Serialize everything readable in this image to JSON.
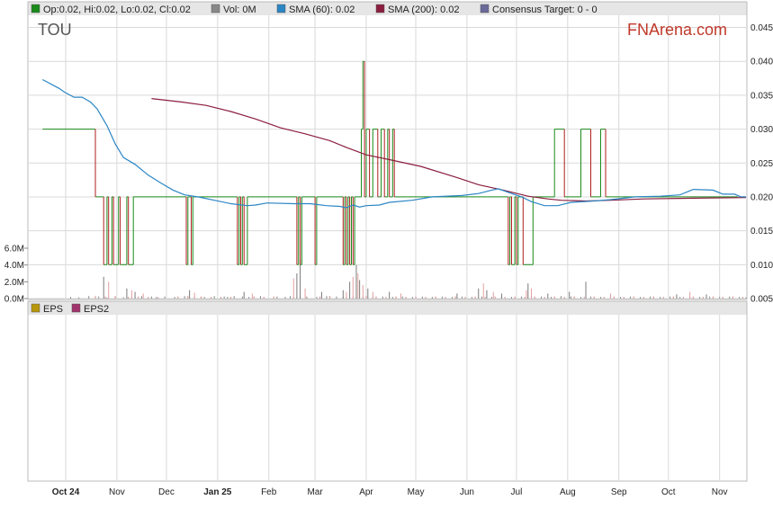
{
  "legend_top": {
    "ohlc": "Op:0.02, Hi:0.02, Lo:0.02, Cl:0.02",
    "vol": "Vol: 0M",
    "sma60": "SMA (60): 0.02",
    "sma200": "SMA (200): 0.02",
    "consensus": "Consensus Target: 0 - 0"
  },
  "legend_bottom": {
    "eps": "EPS",
    "eps2": "EPS2"
  },
  "ticker": "TOU",
  "brand": "FNArena.com",
  "colors": {
    "candle_up": "#1a8a1a",
    "candle_down": "#b01e1e",
    "sma60": "#2b86c5",
    "sma200": "#8b1e3f",
    "grid": "#d9d9d9",
    "legend_bg": "#e6e6e6",
    "brand": "#c0392b",
    "eps": "#b8960c",
    "eps2": "#a0336b"
  },
  "chart_data": {
    "type": "line",
    "price_axis": {
      "ticks": [
        "0.045",
        "0.040",
        "0.035",
        "0.030",
        "0.025",
        "0.020",
        "0.015",
        "0.010",
        "0.005"
      ],
      "ylim": [
        0.005,
        0.045
      ]
    },
    "volume_axis": {
      "ticks": [
        "6.0M",
        "4.0M",
        "2.0M",
        "0.0M"
      ],
      "ylim": [
        0,
        6
      ]
    },
    "months": [
      {
        "label": "Oct 24",
        "bold": true,
        "day": 0
      },
      {
        "label": "Nov",
        "bold": false,
        "day": 31
      },
      {
        "label": "Dec",
        "bold": false,
        "day": 61
      },
      {
        "label": "Jan 25",
        "bold": true,
        "day": 92
      },
      {
        "label": "Feb",
        "bold": false,
        "day": 123
      },
      {
        "label": "Mar",
        "bold": false,
        "day": 151
      },
      {
        "label": "Apr",
        "bold": false,
        "day": 182
      },
      {
        "label": "May",
        "bold": false,
        "day": 212
      },
      {
        "label": "Jun",
        "bold": false,
        "day": 243
      },
      {
        "label": "Jul",
        "bold": false,
        "day": 273
      },
      {
        "label": "Aug",
        "bold": false,
        "day": 304
      },
      {
        "label": "Sep",
        "bold": false,
        "day": 335
      },
      {
        "label": "Oct",
        "bold": false,
        "day": 365
      },
      {
        "label": "Nov",
        "bold": false,
        "day": 396
      }
    ],
    "price_steps": [
      [
        -14,
        0.03
      ],
      [
        17,
        0.03
      ],
      [
        18,
        0.02
      ],
      [
        23,
        0.01
      ],
      [
        25,
        0.02
      ],
      [
        26,
        0.01
      ],
      [
        28,
        0.02
      ],
      [
        29,
        0.01
      ],
      [
        32,
        0.02
      ],
      [
        33,
        0.01
      ],
      [
        34,
        0.01
      ],
      [
        37,
        0.02
      ],
      [
        38,
        0.01
      ],
      [
        40,
        0.01
      ],
      [
        41,
        0.02
      ],
      [
        72,
        0.02
      ],
      [
        73,
        0.01
      ],
      [
        74,
        0.02
      ],
      [
        76,
        0.01
      ],
      [
        77,
        0.02
      ],
      [
        103,
        0.02
      ],
      [
        104,
        0.01
      ],
      [
        105,
        0.02
      ],
      [
        106,
        0.01
      ],
      [
        107,
        0.02
      ],
      [
        108,
        0.01
      ],
      [
        110,
        0.02
      ],
      [
        139,
        0.02
      ],
      [
        140,
        0.01
      ],
      [
        141,
        0.02
      ],
      [
        142,
        0.01
      ],
      [
        143,
        0.02
      ],
      [
        150,
        0.02
      ],
      [
        151,
        0.01
      ],
      [
        152,
        0.02
      ],
      [
        167,
        0.02
      ],
      [
        168,
        0.01
      ],
      [
        169,
        0.02
      ],
      [
        170,
        0.01
      ],
      [
        171,
        0.02
      ],
      [
        172,
        0.01
      ],
      [
        173,
        0.02
      ],
      [
        174,
        0.01
      ],
      [
        175,
        0.02
      ],
      [
        178,
        0.02
      ],
      [
        179,
        0.03
      ],
      [
        180,
        0.04
      ],
      [
        181,
        0.02
      ],
      [
        182,
        0.03
      ],
      [
        184,
        0.02
      ],
      [
        186,
        0.03
      ],
      [
        189,
        0.02
      ],
      [
        191,
        0.03
      ],
      [
        193,
        0.02
      ],
      [
        195,
        0.03
      ],
      [
        196,
        0.02
      ],
      [
        198,
        0.03
      ],
      [
        199,
        0.02
      ],
      [
        267,
        0.02
      ],
      [
        268,
        0.01
      ],
      [
        269,
        0.02
      ],
      [
        270,
        0.01
      ],
      [
        272,
        0.02
      ],
      [
        273,
        0.01
      ],
      [
        274,
        0.02
      ],
      [
        277,
        0.01
      ],
      [
        282,
        0.01
      ],
      [
        283,
        0.02
      ],
      [
        295,
        0.02
      ],
      [
        296,
        0.03
      ],
      [
        301,
        0.03
      ],
      [
        302,
        0.02
      ],
      [
        311,
        0.02
      ],
      [
        312,
        0.03
      ],
      [
        317,
        0.03
      ],
      [
        318,
        0.02
      ],
      [
        323,
        0.02
      ],
      [
        324,
        0.03
      ],
      [
        326,
        0.03
      ],
      [
        327,
        0.02
      ],
      [
        407,
        0.02
      ]
    ],
    "sma60": [
      [
        -14,
        0.0373
      ],
      [
        -4,
        0.036
      ],
      [
        -1,
        0.0355
      ],
      [
        5,
        0.0347
      ],
      [
        10,
        0.0347
      ],
      [
        15,
        0.034
      ],
      [
        19,
        0.033
      ],
      [
        25,
        0.0305
      ],
      [
        30,
        0.0278
      ],
      [
        35,
        0.0258
      ],
      [
        42,
        0.0248
      ],
      [
        50,
        0.0232
      ],
      [
        58,
        0.022
      ],
      [
        65,
        0.021
      ],
      [
        72,
        0.0203
      ],
      [
        80,
        0.02
      ],
      [
        90,
        0.0195
      ],
      [
        100,
        0.019
      ],
      [
        110,
        0.0187
      ],
      [
        115,
        0.0188
      ],
      [
        122,
        0.0191
      ],
      [
        138,
        0.019
      ],
      [
        148,
        0.019
      ],
      [
        158,
        0.0187
      ],
      [
        166,
        0.0186
      ],
      [
        170,
        0.0184
      ],
      [
        174,
        0.0188
      ],
      [
        178,
        0.0185
      ],
      [
        182,
        0.0187
      ],
      [
        190,
        0.0188
      ],
      [
        196,
        0.0192
      ],
      [
        210,
        0.0195
      ],
      [
        222,
        0.02
      ],
      [
        240,
        0.0202
      ],
      [
        250,
        0.0205
      ],
      [
        258,
        0.021
      ],
      [
        262,
        0.0212
      ],
      [
        270,
        0.0205
      ],
      [
        276,
        0.02
      ],
      [
        282,
        0.0193
      ],
      [
        290,
        0.0187
      ],
      [
        298,
        0.0187
      ],
      [
        306,
        0.0192
      ],
      [
        320,
        0.0194
      ],
      [
        330,
        0.0196
      ],
      [
        345,
        0.02
      ],
      [
        360,
        0.0201
      ],
      [
        372,
        0.0203
      ],
      [
        380,
        0.0211
      ],
      [
        392,
        0.021
      ],
      [
        398,
        0.0204
      ],
      [
        405,
        0.0204
      ],
      [
        409,
        0.02
      ],
      [
        414,
        0.02
      ]
    ],
    "sma200": [
      [
        52,
        0.0345
      ],
      [
        70,
        0.034
      ],
      [
        85,
        0.0335
      ],
      [
        100,
        0.0326
      ],
      [
        115,
        0.0315
      ],
      [
        130,
        0.0302
      ],
      [
        145,
        0.0293
      ],
      [
        160,
        0.0283
      ],
      [
        170,
        0.0273
      ],
      [
        182,
        0.0262
      ],
      [
        196,
        0.0255
      ],
      [
        215,
        0.0245
      ],
      [
        235,
        0.023
      ],
      [
        250,
        0.0218
      ],
      [
        265,
        0.021
      ],
      [
        280,
        0.0201
      ],
      [
        292,
        0.0197
      ],
      [
        300,
        0.0195
      ],
      [
        315,
        0.0194
      ],
      [
        330,
        0.0195
      ],
      [
        350,
        0.0197
      ],
      [
        380,
        0.0198
      ],
      [
        414,
        0.0199
      ]
    ],
    "volume_up": [
      [
        3,
        0.2
      ],
      [
        8,
        0.15
      ],
      [
        14,
        0.3
      ],
      [
        20,
        0.25
      ],
      [
        25,
        0.1
      ],
      [
        30,
        0.2
      ],
      [
        35,
        0.15
      ],
      [
        40,
        0.2
      ],
      [
        46,
        0.3
      ],
      [
        52,
        0.25
      ],
      [
        55,
        0.2
      ],
      [
        60,
        0.25
      ],
      [
        66,
        0.2
      ],
      [
        72,
        0.3
      ],
      [
        78,
        0.25
      ],
      [
        84,
        0.2
      ],
      [
        90,
        0.3
      ],
      [
        96,
        0.25
      ],
      [
        98,
        0.2
      ],
      [
        102,
        0.3
      ],
      [
        107,
        0.25
      ],
      [
        111,
        0.2
      ],
      [
        118,
        0.3
      ],
      [
        128,
        0.25
      ],
      [
        133,
        0.2
      ],
      [
        136,
        0.3
      ],
      [
        146,
        0.25
      ],
      [
        152,
        0.2
      ],
      [
        158,
        0.3
      ],
      [
        164,
        0.25
      ],
      [
        170,
        0.3
      ],
      [
        176,
        0.2
      ],
      [
        180,
        0.25
      ],
      [
        186,
        0.2
      ],
      [
        192,
        0.25
      ],
      [
        198,
        0.2
      ],
      [
        204,
        0.25
      ],
      [
        210,
        0.2
      ],
      [
        216,
        0.25
      ],
      [
        222,
        0.2
      ],
      [
        228,
        0.25
      ],
      [
        234,
        0.2
      ],
      [
        240,
        0.25
      ],
      [
        246,
        0.2
      ],
      [
        252,
        0.25
      ],
      [
        258,
        0.2
      ],
      [
        264,
        0.25
      ],
      [
        270,
        0.2
      ],
      [
        276,
        0.25
      ],
      [
        282,
        0.2
      ],
      [
        288,
        0.25
      ],
      [
        294,
        0.2
      ],
      [
        300,
        0.3
      ],
      [
        306,
        0.25
      ],
      [
        312,
        0.2
      ],
      [
        318,
        0.25
      ],
      [
        324,
        0.2
      ],
      [
        330,
        0.25
      ],
      [
        336,
        0.2
      ],
      [
        342,
        0.25
      ],
      [
        348,
        0.2
      ],
      [
        354,
        0.25
      ],
      [
        360,
        0.2
      ],
      [
        366,
        0.25
      ],
      [
        372,
        0.2
      ],
      [
        378,
        0.25
      ],
      [
        384,
        0.2
      ],
      [
        390,
        0.25
      ],
      [
        396,
        0.2
      ],
      [
        402,
        0.25
      ],
      [
        408,
        0.2
      ],
      [
        412,
        0.15
      ]
    ],
    "volume_down": [
      [
        18,
        0.3
      ],
      [
        24,
        0.25
      ],
      [
        30,
        0.3
      ],
      [
        38,
        0.2
      ],
      [
        44,
        0.25
      ],
      [
        50,
        0.2
      ],
      [
        56,
        0.15
      ],
      [
        68,
        0.25
      ],
      [
        74,
        0.3
      ],
      [
        82,
        0.25
      ],
      [
        88,
        0.2
      ],
      [
        94,
        0.2
      ],
      [
        100,
        0.2
      ],
      [
        114,
        0.25
      ],
      [
        120,
        0.2
      ],
      [
        126,
        0.25
      ],
      [
        138,
        0.2
      ],
      [
        142,
        0.25
      ],
      [
        154,
        0.25
      ],
      [
        160,
        0.3
      ],
      [
        168,
        0.2
      ],
      [
        174,
        0.25
      ],
      [
        182,
        0.3
      ],
      [
        188,
        0.25
      ],
      [
        194,
        0.2
      ],
      [
        200,
        0.25
      ],
      [
        206,
        0.2
      ],
      [
        212,
        0.25
      ],
      [
        218,
        0.2
      ],
      [
        224,
        0.25
      ],
      [
        230,
        0.2
      ],
      [
        236,
        0.25
      ],
      [
        242,
        0.2
      ],
      [
        248,
        0.25
      ],
      [
        254,
        0.2
      ],
      [
        260,
        0.25
      ],
      [
        266,
        0.2
      ],
      [
        272,
        0.25
      ],
      [
        278,
        0.2
      ],
      [
        284,
        0.25
      ],
      [
        290,
        0.2
      ],
      [
        296,
        0.25
      ],
      [
        302,
        0.2
      ],
      [
        308,
        0.25
      ],
      [
        314,
        0.2
      ],
      [
        320,
        0.25
      ],
      [
        326,
        0.2
      ],
      [
        332,
        0.25
      ],
      [
        338,
        0.2
      ],
      [
        344,
        0.25
      ],
      [
        350,
        0.2
      ],
      [
        356,
        0.25
      ],
      [
        362,
        0.2
      ],
      [
        368,
        0.25
      ],
      [
        374,
        0.2
      ],
      [
        380,
        0.25
      ],
      [
        386,
        0.2
      ],
      [
        392,
        0.25
      ],
      [
        398,
        0.2
      ],
      [
        404,
        0.25
      ],
      [
        410,
        0.2
      ]
    ],
    "volume_spikes": [
      [
        23,
        2.6,
        "up"
      ],
      [
        26,
        2.0,
        "down"
      ],
      [
        37,
        1.2,
        "up"
      ],
      [
        40,
        1.0,
        "down"
      ],
      [
        42,
        0.8,
        "up"
      ],
      [
        47,
        0.6,
        "down"
      ],
      [
        75,
        1.0,
        "up"
      ],
      [
        78,
        0.7,
        "down"
      ],
      [
        108,
        0.8,
        "up"
      ],
      [
        113,
        0.6,
        "down"
      ],
      [
        138,
        2.4,
        "down"
      ],
      [
        140,
        3.0,
        "up"
      ],
      [
        142,
        4.6,
        "up"
      ],
      [
        145,
        1.2,
        "down"
      ],
      [
        155,
        0.8,
        "up"
      ],
      [
        168,
        1.0,
        "up"
      ],
      [
        170,
        0.8,
        "down"
      ],
      [
        172,
        2.0,
        "up"
      ],
      [
        174,
        2.6,
        "down"
      ],
      [
        176,
        4.0,
        "up"
      ],
      [
        177,
        3.0,
        "down"
      ],
      [
        178,
        2.2,
        "up"
      ],
      [
        180,
        1.6,
        "down"
      ],
      [
        183,
        1.2,
        "up"
      ],
      [
        186,
        0.8,
        "down"
      ],
      [
        196,
        0.8,
        "up"
      ],
      [
        203,
        0.6,
        "down"
      ],
      [
        237,
        0.6,
        "up"
      ],
      [
        250,
        1.2,
        "up"
      ],
      [
        253,
        1.8,
        "down"
      ],
      [
        255,
        1.0,
        "up"
      ],
      [
        259,
        0.8,
        "down"
      ],
      [
        264,
        0.6,
        "up"
      ],
      [
        279,
        1.0,
        "down"
      ],
      [
        280,
        1.8,
        "up"
      ],
      [
        282,
        1.2,
        "down"
      ],
      [
        292,
        0.6,
        "up"
      ],
      [
        305,
        0.8,
        "up"
      ],
      [
        315,
        2.0,
        "up"
      ],
      [
        330,
        0.6,
        "down"
      ],
      [
        370,
        0.5,
        "up"
      ],
      [
        378,
        0.8,
        "down"
      ],
      [
        388,
        0.5,
        "up"
      ]
    ]
  }
}
